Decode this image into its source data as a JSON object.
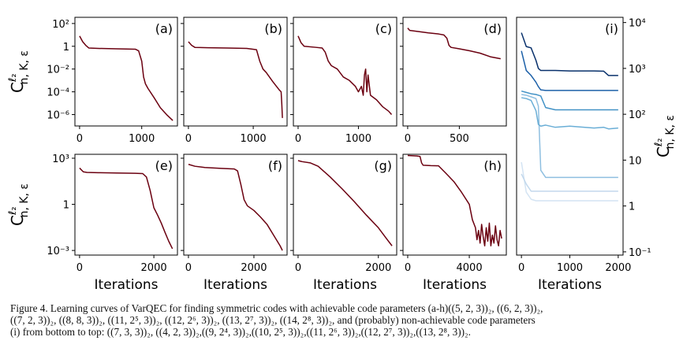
{
  "chart_data": [
    {
      "type": "line",
      "title": "(a)",
      "log_y": true,
      "xlim": [
        -75,
        1575
      ],
      "xticks": [
        0,
        1000
      ],
      "ylim": [
        1e-07,
        350
      ],
      "yticks": [
        {
          "value": 100,
          "label": "10²"
        },
        1,
        {
          "value": 0.01,
          "label": "10⁻²"
        },
        {
          "value": 0.0001,
          "label": "10⁻⁴"
        },
        {
          "value": 1e-06,
          "label": "10⁻⁶"
        }
      ],
      "show_ytick_labels": true,
      "ylabel": {
        "base": "C",
        "sup": "ℓ₂",
        "sub": "n, K, ε"
      },
      "x": [
        0,
        50,
        100,
        150,
        300,
        600,
        900,
        950,
        1000,
        1030,
        1060,
        1100,
        1200,
        1300,
        1400,
        1500
      ],
      "series": [
        {
          "color": "#6b0010",
          "values": [
            8,
            2.5,
            1.2,
            0.7,
            0.65,
            0.6,
            0.55,
            0.4,
            0.05,
            0.002,
            0.0005,
            0.0002,
            3e-05,
            4e-06,
            1e-06,
            3e-07
          ]
        }
      ]
    },
    {
      "type": "line",
      "title": "(b)",
      "log_y": true,
      "xlim": [
        -72,
        1522
      ],
      "xticks": [
        0,
        1000
      ],
      "ylim": [
        1e-07,
        350
      ],
      "yticks": [
        100,
        1,
        0.01,
        0.0001,
        1e-06
      ],
      "show_ytick_labels": false,
      "x": [
        0,
        50,
        100,
        300,
        600,
        900,
        1050,
        1100,
        1150,
        1200,
        1300,
        1400,
        1430,
        1440,
        1450
      ],
      "series": [
        {
          "color": "#6b0010",
          "values": [
            2.5,
            1.2,
            0.8,
            0.75,
            0.7,
            0.65,
            0.5,
            0.05,
            0.01,
            0.005,
            0.0008,
            0.00015,
            0.0001,
            1e-05,
            5e-07
          ]
        }
      ]
    },
    {
      "type": "line",
      "title": "(c)",
      "log_y": true,
      "xlim": [
        -78,
        1635
      ],
      "xticks": [
        0,
        1000
      ],
      "ylim": [
        1e-07,
        350
      ],
      "yticks": [
        100,
        1,
        0.01,
        0.0001,
        1e-06
      ],
      "show_ytick_labels": false,
      "x": [
        0,
        50,
        100,
        300,
        400,
        450,
        500,
        550,
        650,
        750,
        850,
        950,
        1000,
        1050,
        1080,
        1100,
        1120,
        1140,
        1160,
        1200,
        1300,
        1400,
        1500,
        1550
      ],
      "series": [
        {
          "color": "#6b0010",
          "values": [
            8,
            2,
            1,
            0.8,
            0.7,
            0.3,
            0.05,
            0.02,
            0.01,
            0.002,
            0.001,
            0.0003,
            0.0001,
            0.0003,
            5e-05,
            0.003,
            0.01,
            0.0001,
            0.003,
            5e-05,
            2e-05,
            5e-06,
            2e-06,
            1e-06
          ]
        }
      ]
    },
    {
      "type": "line",
      "title": "(d)",
      "log_y": true,
      "xlim": [
        -45,
        955
      ],
      "xticks": [
        0,
        500
      ],
      "ylim": [
        1e-07,
        350
      ],
      "yticks": [
        100,
        1,
        0.01,
        0.0001,
        1e-06
      ],
      "show_ytick_labels": false,
      "x": [
        0,
        20,
        100,
        200,
        300,
        350,
        380,
        400,
        420,
        500,
        600,
        700,
        800,
        900
      ],
      "series": [
        {
          "color": "#6b0010",
          "values": [
            40,
            25,
            20,
            15,
            12,
            10,
            5,
            1.2,
            0.8,
            0.6,
            0.4,
            0.25,
            0.12,
            0.08
          ]
        }
      ]
    },
    {
      "type": "line",
      "title": "(e)",
      "log_y": true,
      "xlim": [
        -125,
        2635
      ],
      "xticks": [
        0,
        2000
      ],
      "ylim": [
        0.0005,
        1800
      ],
      "yticks": [
        {
          "value": 1000,
          "label": "10³"
        },
        1,
        {
          "value": 0.001,
          "label": "10⁻³"
        }
      ],
      "show_ytick_labels": true,
      "ylabel": {
        "base": "C",
        "sup": "ℓ₂",
        "sub": "n, K, ε"
      },
      "xlabel": "Iterations",
      "x": [
        0,
        100,
        200,
        500,
        1000,
        1500,
        1700,
        1800,
        1900,
        2000,
        2100,
        2200,
        2300,
        2400,
        2500
      ],
      "series": [
        {
          "color": "#6b0010",
          "values": [
            230,
            130,
            120,
            115,
            110,
            105,
            100,
            60,
            8,
            0.6,
            0.2,
            0.06,
            0.015,
            0.004,
            0.0013
          ]
        }
      ]
    },
    {
      "type": "line",
      "title": "(f)",
      "log_y": true,
      "xlim": [
        -143,
        3013
      ],
      "xticks": [
        0,
        2000
      ],
      "ylim": [
        0.0005,
        1800
      ],
      "yticks": [
        1000,
        1,
        0.001
      ],
      "show_ytick_labels": false,
      "xlabel": "Iterations",
      "x": [
        0,
        200,
        500,
        1000,
        1400,
        1500,
        1600,
        1700,
        1800,
        2000,
        2200,
        2400,
        2600,
        2800,
        2870
      ],
      "series": [
        {
          "color": "#6b0010",
          "values": [
            400,
            300,
            250,
            220,
            200,
            150,
            20,
            2,
            0.8,
            0.4,
            0.15,
            0.05,
            0.01,
            0.002,
            0.001
          ]
        }
      ]
    },
    {
      "type": "line",
      "title": "(g)",
      "log_y": true,
      "xlim": [
        -117,
        2457
      ],
      "xticks": [
        0,
        2000
      ],
      "ylim": [
        0.0005,
        1800
      ],
      "yticks": [
        1000,
        1,
        0.001
      ],
      "show_ytick_labels": false,
      "xlabel": "Iterations",
      "x": [
        0,
        100,
        300,
        500,
        800,
        1100,
        1400,
        1700,
        2000,
        2200,
        2340
      ],
      "series": [
        {
          "color": "#6b0010",
          "values": [
            700,
            600,
            500,
            300,
            60,
            10,
            1.5,
            0.2,
            0.03,
            0.006,
            0.002
          ]
        }
      ]
    },
    {
      "type": "line",
      "title": "(h)",
      "log_y": true,
      "xlim": [
        -305,
        6405
      ],
      "xticks": [
        0,
        4000
      ],
      "ylim": [
        0.0005,
        1800
      ],
      "yticks": [
        1000,
        1,
        0.001
      ],
      "show_ytick_labels": false,
      "xlabel": "Iterations",
      "x": [
        0,
        600,
        800,
        900,
        1000,
        1500,
        2000,
        2500,
        3000,
        3500,
        4000,
        4200,
        4400,
        4500,
        4600,
        4700,
        4800,
        4900,
        5000,
        5100,
        5200,
        5300,
        5400,
        5500,
        5600,
        5700,
        5800,
        5900,
        6000,
        6100
      ],
      "series": [
        {
          "color": "#6b0010",
          "values": [
            1500,
            1400,
            1300,
            500,
            350,
            330,
            320,
            100,
            30,
            6,
            1,
            0.1,
            0.03,
            0.005,
            0.02,
            0.003,
            0.05,
            0.008,
            0.002,
            0.03,
            0.004,
            0.06,
            0.002,
            0.01,
            0.003,
            0.04,
            0.005,
            0.002,
            0.02,
            0.006
          ]
        }
      ]
    },
    {
      "type": "line",
      "title": "(i)",
      "log_y": true,
      "xlim": [
        -100,
        2100
      ],
      "xticks": [
        0,
        1000,
        2000
      ],
      "ylim": [
        0.085,
        13000
      ],
      "yticks": [
        {
          "value": 10000,
          "label": "10⁴"
        },
        {
          "value": 1000,
          "label": "10³"
        },
        {
          "value": 100,
          "label": "10²"
        },
        10,
        1,
        {
          "value": 0.1,
          "label": "10⁻¹"
        }
      ],
      "show_ytick_labels": true,
      "y_axis_side": "right",
      "ylabel": {
        "base": "C",
        "sup": "ℓ₂",
        "sub": "n, K, ε"
      },
      "xlabel": "Iterations",
      "x": [
        0,
        100,
        200,
        300,
        350,
        400,
        500,
        700,
        1000,
        1500,
        1700,
        1800,
        2000
      ],
      "series": [
        {
          "color": "#d4e4f3",
          "values": [
            9,
            2,
            1.4,
            1.3,
            1.3,
            1.3,
            1.3,
            1.3,
            1.3,
            1.3,
            1.3,
            1.3,
            1.3
          ]
        },
        {
          "color": "#c2d8ec",
          "values": [
            5,
            3,
            2.1,
            2.1,
            2.1,
            2.1,
            2.1,
            2.1,
            2.1,
            2.1,
            2.1,
            2.1,
            2.1
          ]
        },
        {
          "color": "#8fbfe0",
          "values": [
            270,
            260,
            240,
            220,
            150,
            6,
            4.2,
            4.2,
            4.2,
            4.2,
            4.2,
            4.2,
            4.2
          ]
        },
        {
          "color": "#6aaed6",
          "values": [
            230,
            220,
            200,
            120,
            60,
            55,
            58,
            52,
            55,
            50,
            52,
            48,
            50
          ]
        },
        {
          "color": "#4292c6",
          "values": [
            320,
            300,
            280,
            270,
            260,
            250,
            140,
            125,
            125,
            125,
            125,
            125,
            125
          ]
        },
        {
          "color": "#1c60a8",
          "values": [
            2400,
            900,
            700,
            500,
            400,
            340,
            330,
            330,
            330,
            330,
            330,
            330,
            330
          ]
        },
        {
          "color": "#08306b",
          "values": [
            6000,
            3000,
            2800,
            1500,
            1000,
            900,
            900,
            900,
            880,
            880,
            870,
            700,
            700
          ]
        }
      ]
    }
  ],
  "caption": {
    "lines": [
      "Figure 4. Learning curves of VarQEC for finding symmetric codes with achievable code parameters (a-h)((5, 2, 3))₂, ((6, 2, 3))₂,",
      "((7, 2, 3))₂, ((8, 8, 3))₂, ((11, 2⁵, 3))₂, ((12, 2⁶, 3))₂, ((13, 2⁷, 3))₂, ((14, 2⁸, 3))₂, and (probably) non-achievable code parameters",
      "(i) from bottom to top: ((7, 3, 3))₂, ((4, 2, 3))₂,((9, 2⁴, 3))₂,((10, 2⁵, 3))₂,((11, 2⁶, 3))₂,((12, 2⁷, 3))₂,((13, 2⁸, 3))₂."
    ]
  }
}
